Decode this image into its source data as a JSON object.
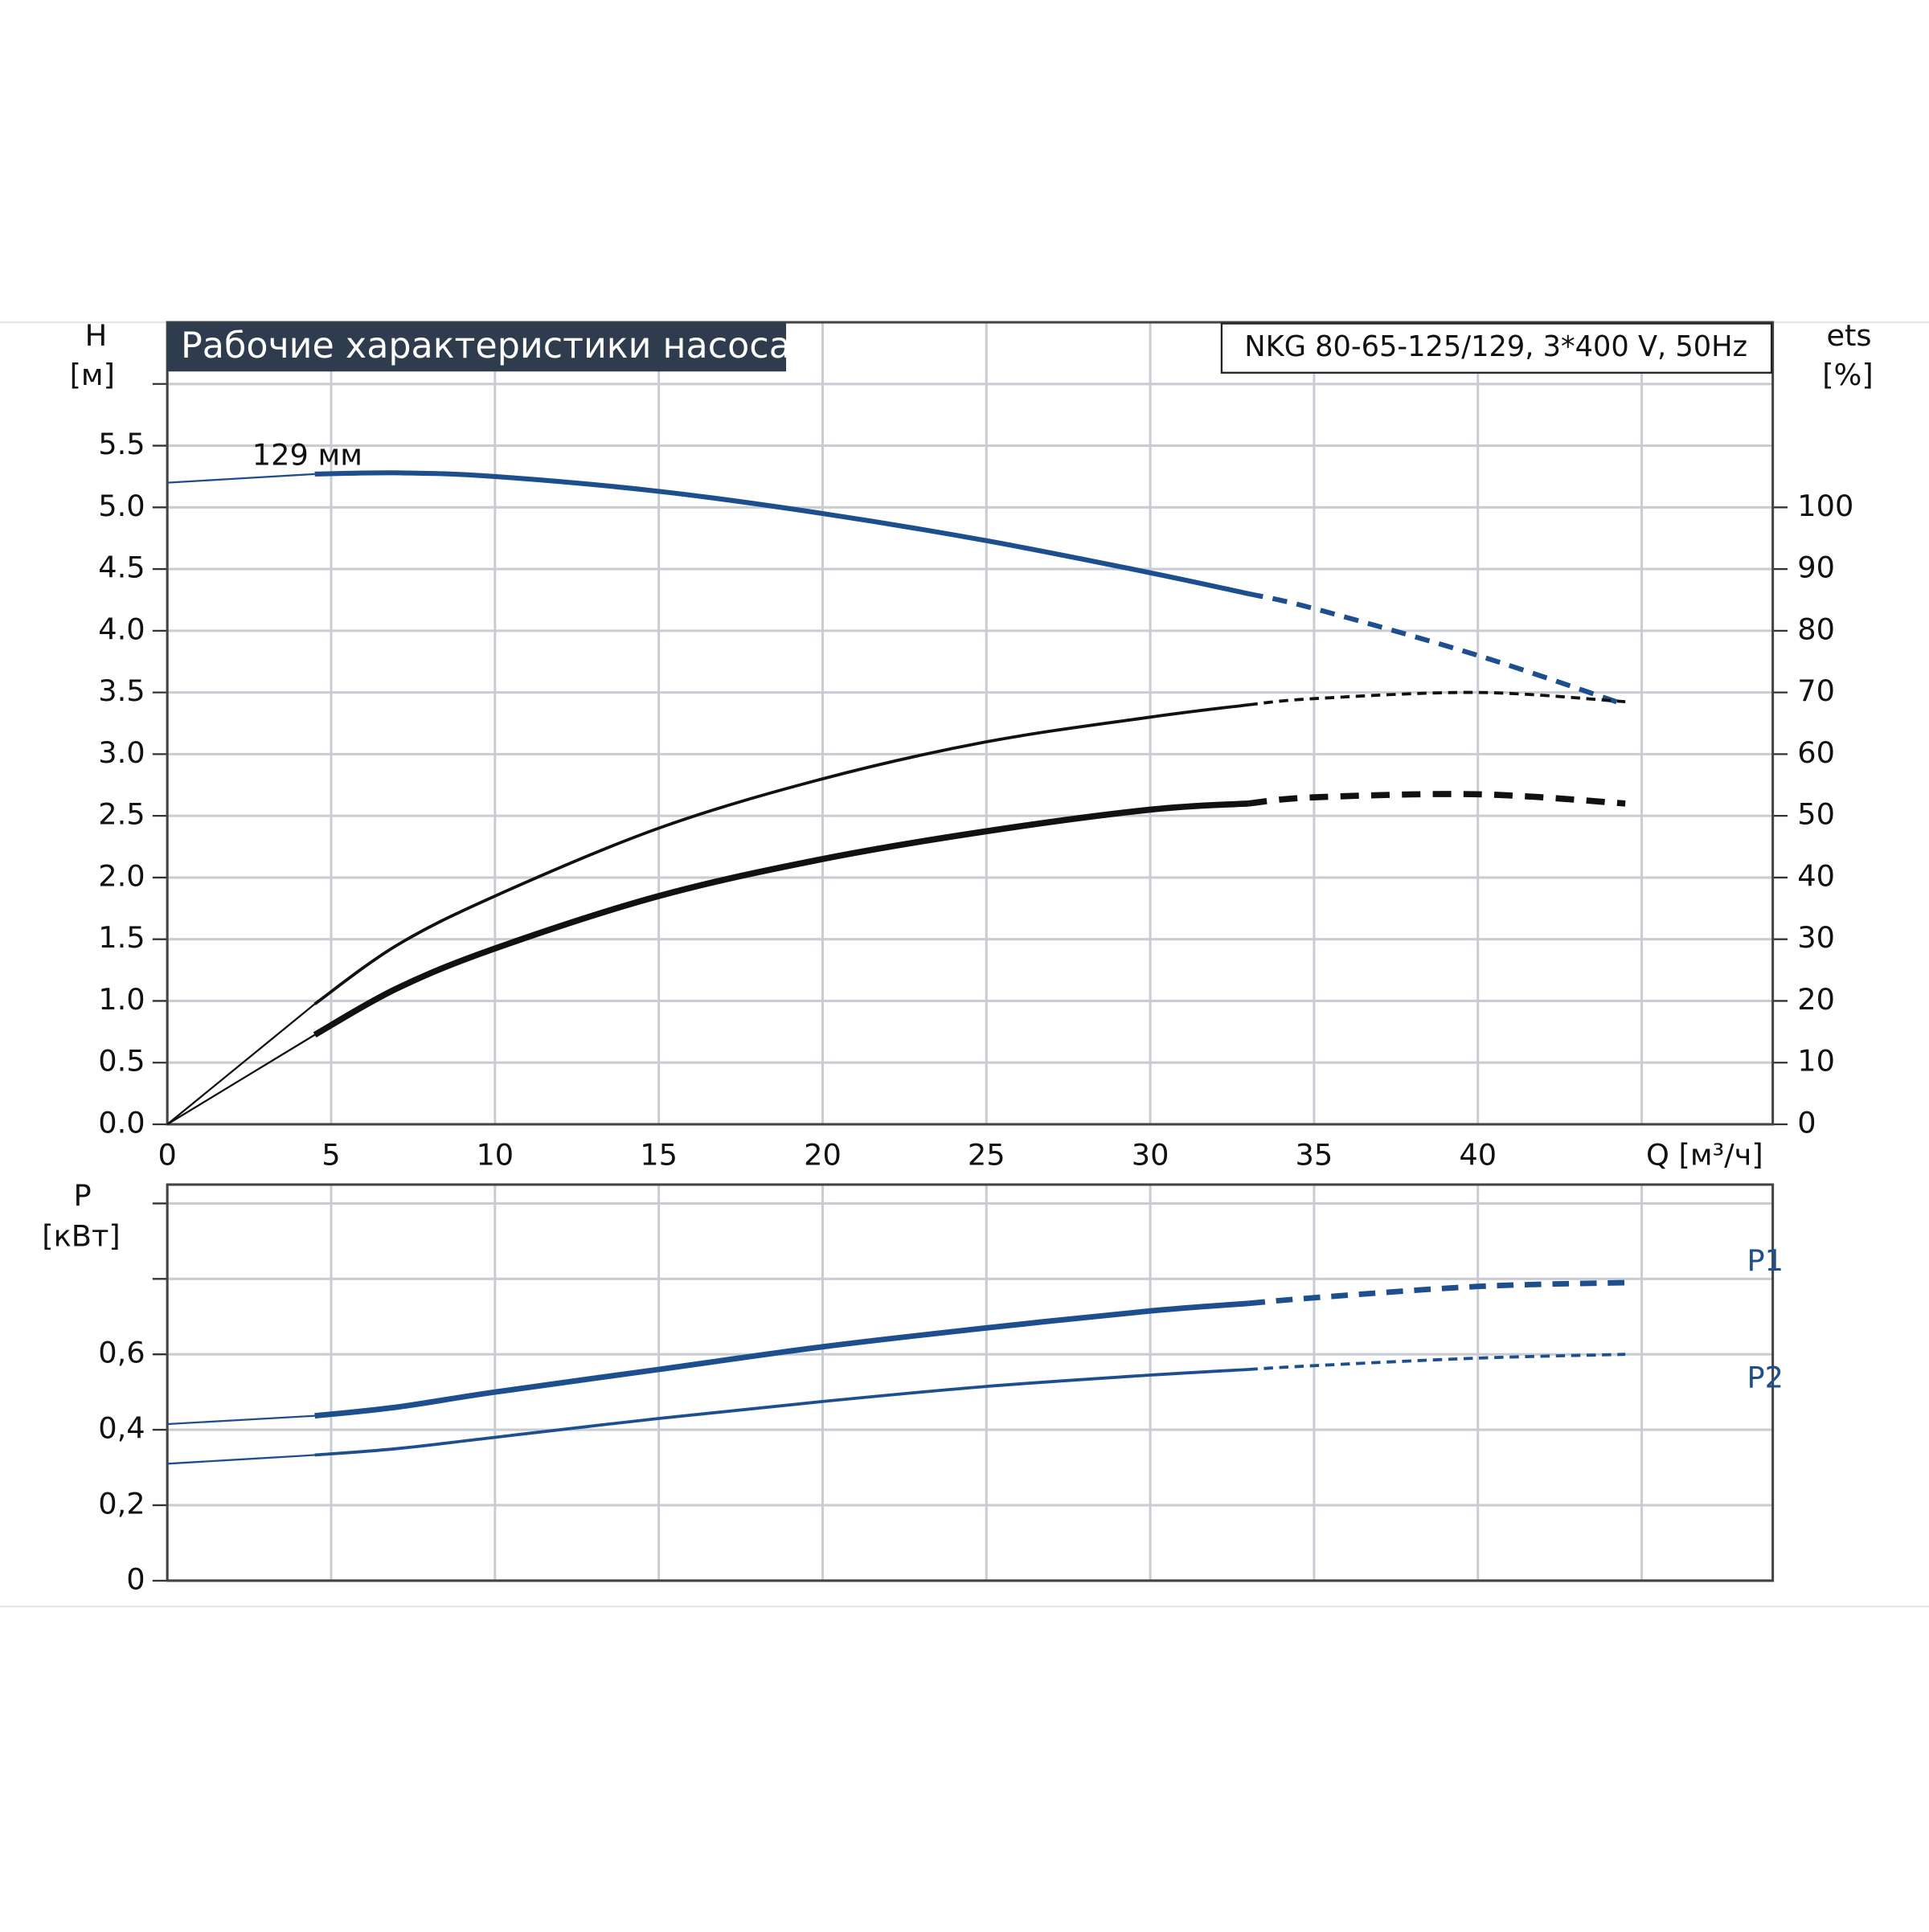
{
  "chart_data": [
    {
      "type": "line",
      "title": "Рабочие характеристики насоса",
      "subtitle": "NKG 80-65-125/129, 3*400 V, 50Hz",
      "y_label": [
        "H",
        "[м]"
      ],
      "y2_label": [
        "ets",
        "[%]"
      ],
      "x_label": "Q [м³/ч]",
      "x": [
        0,
        4.5,
        7,
        10,
        15,
        20,
        25,
        30,
        33,
        35,
        40,
        44.5
      ],
      "xlim": [
        0,
        49
      ],
      "xticks": [
        0,
        5,
        10,
        15,
        20,
        25,
        30,
        35,
        40
      ],
      "minor_xticks": [
        45
      ],
      "ylim": [
        0,
        6.5
      ],
      "yticks": [
        {
          "value": 0,
          "label": "0.0"
        },
        0.5,
        {
          "value": 1,
          "label": "1.0"
        },
        1.5,
        {
          "value": 2,
          "label": "2.0"
        },
        2.5,
        {
          "value": 3,
          "label": "3.0"
        },
        3.5,
        {
          "value": 4,
          "label": "4.0"
        },
        4.5,
        {
          "value": 5,
          "label": "5.0"
        },
        5.5
      ],
      "minor_yticks": [
        6
      ],
      "y2lim": [
        0,
        130
      ],
      "y2ticks": [
        0,
        10,
        20,
        30,
        40,
        50,
        60,
        70,
        80,
        90,
        100
      ],
      "grid": true,
      "thick_from": 4.5,
      "dash_from": 33,
      "series": [
        {
          "name": "129 мм",
          "color": "#1d4f8f",
          "line_width": 4,
          "values": [
            5.2,
            5.27,
            5.28,
            5.25,
            5.13,
            4.95,
            4.73,
            4.47,
            4.3,
            4.18,
            3.8,
            3.4
          ]
        },
        {
          "color": "#111111",
          "axis": "y2",
          "line_width": 2.5,
          "values": [
            0,
            19.5,
            29,
            37,
            48,
            56,
            62,
            66,
            68,
            69,
            70,
            68.5
          ]
        },
        {
          "color": "#111111",
          "axis": "y2",
          "line_width": 5,
          "values": [
            0,
            14.5,
            22,
            28.5,
            37,
            43,
            47.5,
            51,
            52,
            53,
            53.5,
            52
          ]
        }
      ]
    },
    {
      "type": "line",
      "y_label": [
        "P",
        "[кВт]"
      ],
      "x": [
        0,
        4.5,
        7,
        10,
        15,
        20,
        25,
        30,
        33,
        35,
        40,
        44.5
      ],
      "xlim": [
        0,
        49
      ],
      "ylim": [
        0,
        1.05
      ],
      "yticks": [
        0,
        {
          "value": 0.2,
          "label": "0,2"
        },
        {
          "value": 0.4,
          "label": "0,4"
        },
        {
          "value": 0.6,
          "label": "0,6"
        }
      ],
      "minor_yticks": [
        0.8,
        1
      ],
      "grid": true,
      "thick_from": 4.5,
      "dash_from": 33,
      "series": [
        {
          "name": "P1",
          "color": "#1d4f8f",
          "line_width": 4.5,
          "values": [
            0.415,
            0.437,
            0.46,
            0.5,
            0.56,
            0.62,
            0.67,
            0.715,
            0.735,
            0.75,
            0.78,
            0.79
          ]
        },
        {
          "name": "P2",
          "color": "#1d4f8f",
          "line_width": 2.5,
          "values": [
            0.31,
            0.333,
            0.35,
            0.38,
            0.43,
            0.475,
            0.515,
            0.545,
            0.56,
            0.57,
            0.59,
            0.6
          ]
        }
      ]
    }
  ]
}
